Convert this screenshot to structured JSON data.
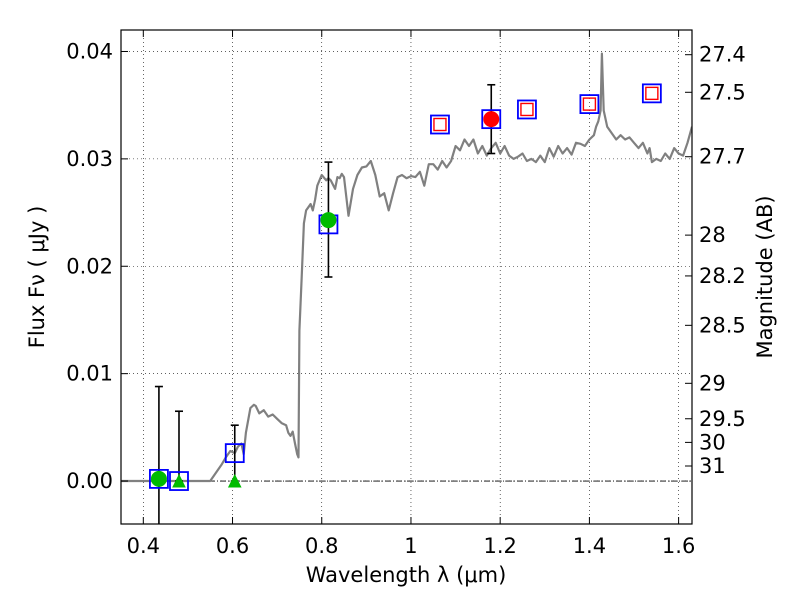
{
  "chart_data": {
    "type": "scatter",
    "title": "",
    "xlabel": "Wavelength  λ (μm)",
    "ylabel": "Flux  Fν  ( μJy )",
    "y2label": "Magnitude (AB)",
    "xlim": [
      0.35,
      1.63
    ],
    "ylim": [
      -0.004,
      0.042
    ],
    "grid": true,
    "x_ticks": [
      {
        "value": 0.4,
        "label": "0.4"
      },
      {
        "value": 0.6,
        "label": "0.6"
      },
      {
        "value": 0.8,
        "label": "0.8"
      },
      {
        "value": 1.0,
        "label": "1"
      },
      {
        "value": 1.2,
        "label": "1.2"
      },
      {
        "value": 1.4,
        "label": "1.4"
      },
      {
        "value": 1.6,
        "label": "1.6"
      }
    ],
    "y_ticks": [
      {
        "value": 0.0,
        "label": "0.00"
      },
      {
        "value": 0.01,
        "label": "0.01"
      },
      {
        "value": 0.02,
        "label": "0.02"
      },
      {
        "value": 0.03,
        "label": "0.03"
      },
      {
        "value": 0.04,
        "label": "0.04"
      }
    ],
    "y2_ticks": [
      {
        "flux": 0.0397,
        "label": "27.4"
      },
      {
        "flux": 0.0362,
        "label": "27.5"
      },
      {
        "flux": 0.0302,
        "label": "27.7"
      },
      {
        "flux": 0.0229,
        "label": "28"
      },
      {
        "flux": 0.0191,
        "label": "28.2"
      },
      {
        "flux": 0.0145,
        "label": "28.5"
      },
      {
        "flux": 0.0091,
        "label": "29"
      },
      {
        "flux": 0.0058,
        "label": "29.5"
      },
      {
        "flux": 0.0036,
        "label": "30"
      },
      {
        "flux": 0.0014,
        "label": "31"
      }
    ],
    "zero_line": 0.0,
    "model_spectrum": {
      "color": "#808080",
      "x": [
        0.35,
        0.55,
        0.575,
        0.585,
        0.595,
        0.605,
        0.612,
        0.62,
        0.625,
        0.63,
        0.64,
        0.648,
        0.652,
        0.66,
        0.67,
        0.68,
        0.69,
        0.7,
        0.71,
        0.72,
        0.725,
        0.73,
        0.735,
        0.74,
        0.745,
        0.748,
        0.75,
        0.755,
        0.76,
        0.765,
        0.77,
        0.775,
        0.78,
        0.785,
        0.79,
        0.8,
        0.81,
        0.815,
        0.82,
        0.83,
        0.835,
        0.84,
        0.845,
        0.85,
        0.86,
        0.87,
        0.88,
        0.89,
        0.9,
        0.91,
        0.92,
        0.93,
        0.94,
        0.95,
        0.96,
        0.97,
        0.98,
        0.99,
        1.0,
        1.01,
        1.02,
        1.03,
        1.04,
        1.05,
        1.06,
        1.07,
        1.08,
        1.09,
        1.1,
        1.11,
        1.12,
        1.13,
        1.14,
        1.15,
        1.16,
        1.17,
        1.18,
        1.19,
        1.2,
        1.21,
        1.22,
        1.23,
        1.24,
        1.25,
        1.26,
        1.27,
        1.28,
        1.29,
        1.3,
        1.31,
        1.32,
        1.33,
        1.34,
        1.35,
        1.36,
        1.37,
        1.38,
        1.39,
        1.4,
        1.41,
        1.415,
        1.42,
        1.425,
        1.428,
        1.432,
        1.44,
        1.45,
        1.46,
        1.47,
        1.48,
        1.49,
        1.5,
        1.51,
        1.52,
        1.53,
        1.535,
        1.54,
        1.55,
        1.56,
        1.57,
        1.58,
        1.59,
        1.6,
        1.61,
        1.62,
        1.63
      ],
      "y": [
        0.0,
        0.0,
        0.0015,
        0.0022,
        0.0028,
        0.0026,
        0.0032,
        0.0035,
        0.0025,
        0.0045,
        0.0068,
        0.0071,
        0.007,
        0.0063,
        0.0066,
        0.006,
        0.0062,
        0.0058,
        0.0054,
        0.0052,
        0.0045,
        0.0042,
        0.0046,
        0.0035,
        0.0025,
        0.0022,
        0.014,
        0.019,
        0.024,
        0.0252,
        0.0255,
        0.0258,
        0.0252,
        0.0262,
        0.0275,
        0.0285,
        0.028,
        0.0282,
        0.028,
        0.0272,
        0.0283,
        0.0282,
        0.0286,
        0.0283,
        0.0247,
        0.0272,
        0.0285,
        0.0292,
        0.0293,
        0.0298,
        0.0285,
        0.0265,
        0.0268,
        0.0252,
        0.0268,
        0.0283,
        0.0285,
        0.0282,
        0.0284,
        0.0283,
        0.0288,
        0.0275,
        0.0295,
        0.0295,
        0.029,
        0.0298,
        0.0292,
        0.0298,
        0.0312,
        0.0308,
        0.0318,
        0.0312,
        0.0318,
        0.0305,
        0.0312,
        0.0303,
        0.031,
        0.0315,
        0.0305,
        0.0312,
        0.0303,
        0.03,
        0.0302,
        0.0305,
        0.0298,
        0.03,
        0.0297,
        0.0303,
        0.0297,
        0.031,
        0.0302,
        0.0312,
        0.0305,
        0.031,
        0.0304,
        0.0315,
        0.0314,
        0.0312,
        0.0318,
        0.0322,
        0.033,
        0.0335,
        0.0345,
        0.0398,
        0.0345,
        0.033,
        0.0324,
        0.0318,
        0.0322,
        0.0318,
        0.032,
        0.0315,
        0.031,
        0.0315,
        0.0305,
        0.031,
        0.0297,
        0.03,
        0.0298,
        0.0305,
        0.03,
        0.031,
        0.0305,
        0.0303,
        0.0315,
        0.033
      ]
    },
    "observed_squares": {
      "color": "#0000ff",
      "x": [
        0.435,
        0.48,
        0.605,
        0.815,
        1.065,
        1.18,
        1.26,
        1.4,
        1.54
      ],
      "y": [
        0.0002,
        0.0,
        0.0026,
        0.0239,
        0.0332,
        0.0337,
        0.0346,
        0.0351,
        0.0361
      ]
    },
    "red_open_squares": {
      "color": "#ff0000",
      "x": [
        1.065,
        1.26,
        1.4,
        1.54
      ],
      "y": [
        0.0332,
        0.0346,
        0.0351,
        0.0361
      ]
    },
    "green_circles": {
      "color": "#00bb00",
      "x": [
        0.435,
        0.815
      ],
      "y": [
        0.0002,
        0.0243
      ]
    },
    "green_triangles": {
      "color": "#00bb00",
      "x": [
        0.48,
        0.605
      ],
      "y": [
        0.0,
        0.0
      ]
    },
    "red_circle": {
      "color": "#ff0000",
      "x": [
        1.18
      ],
      "y": [
        0.0337
      ]
    },
    "error_bars": [
      {
        "x": 0.435,
        "low": -0.0045,
        "high": 0.0088
      },
      {
        "x": 0.48,
        "low": 0.0,
        "high": 0.0065
      },
      {
        "x": 0.605,
        "low": 0.0,
        "high": 0.0052
      },
      {
        "x": 0.815,
        "low": 0.019,
        "high": 0.0297
      },
      {
        "x": 1.18,
        "low": 0.0305,
        "high": 0.0369
      }
    ]
  }
}
